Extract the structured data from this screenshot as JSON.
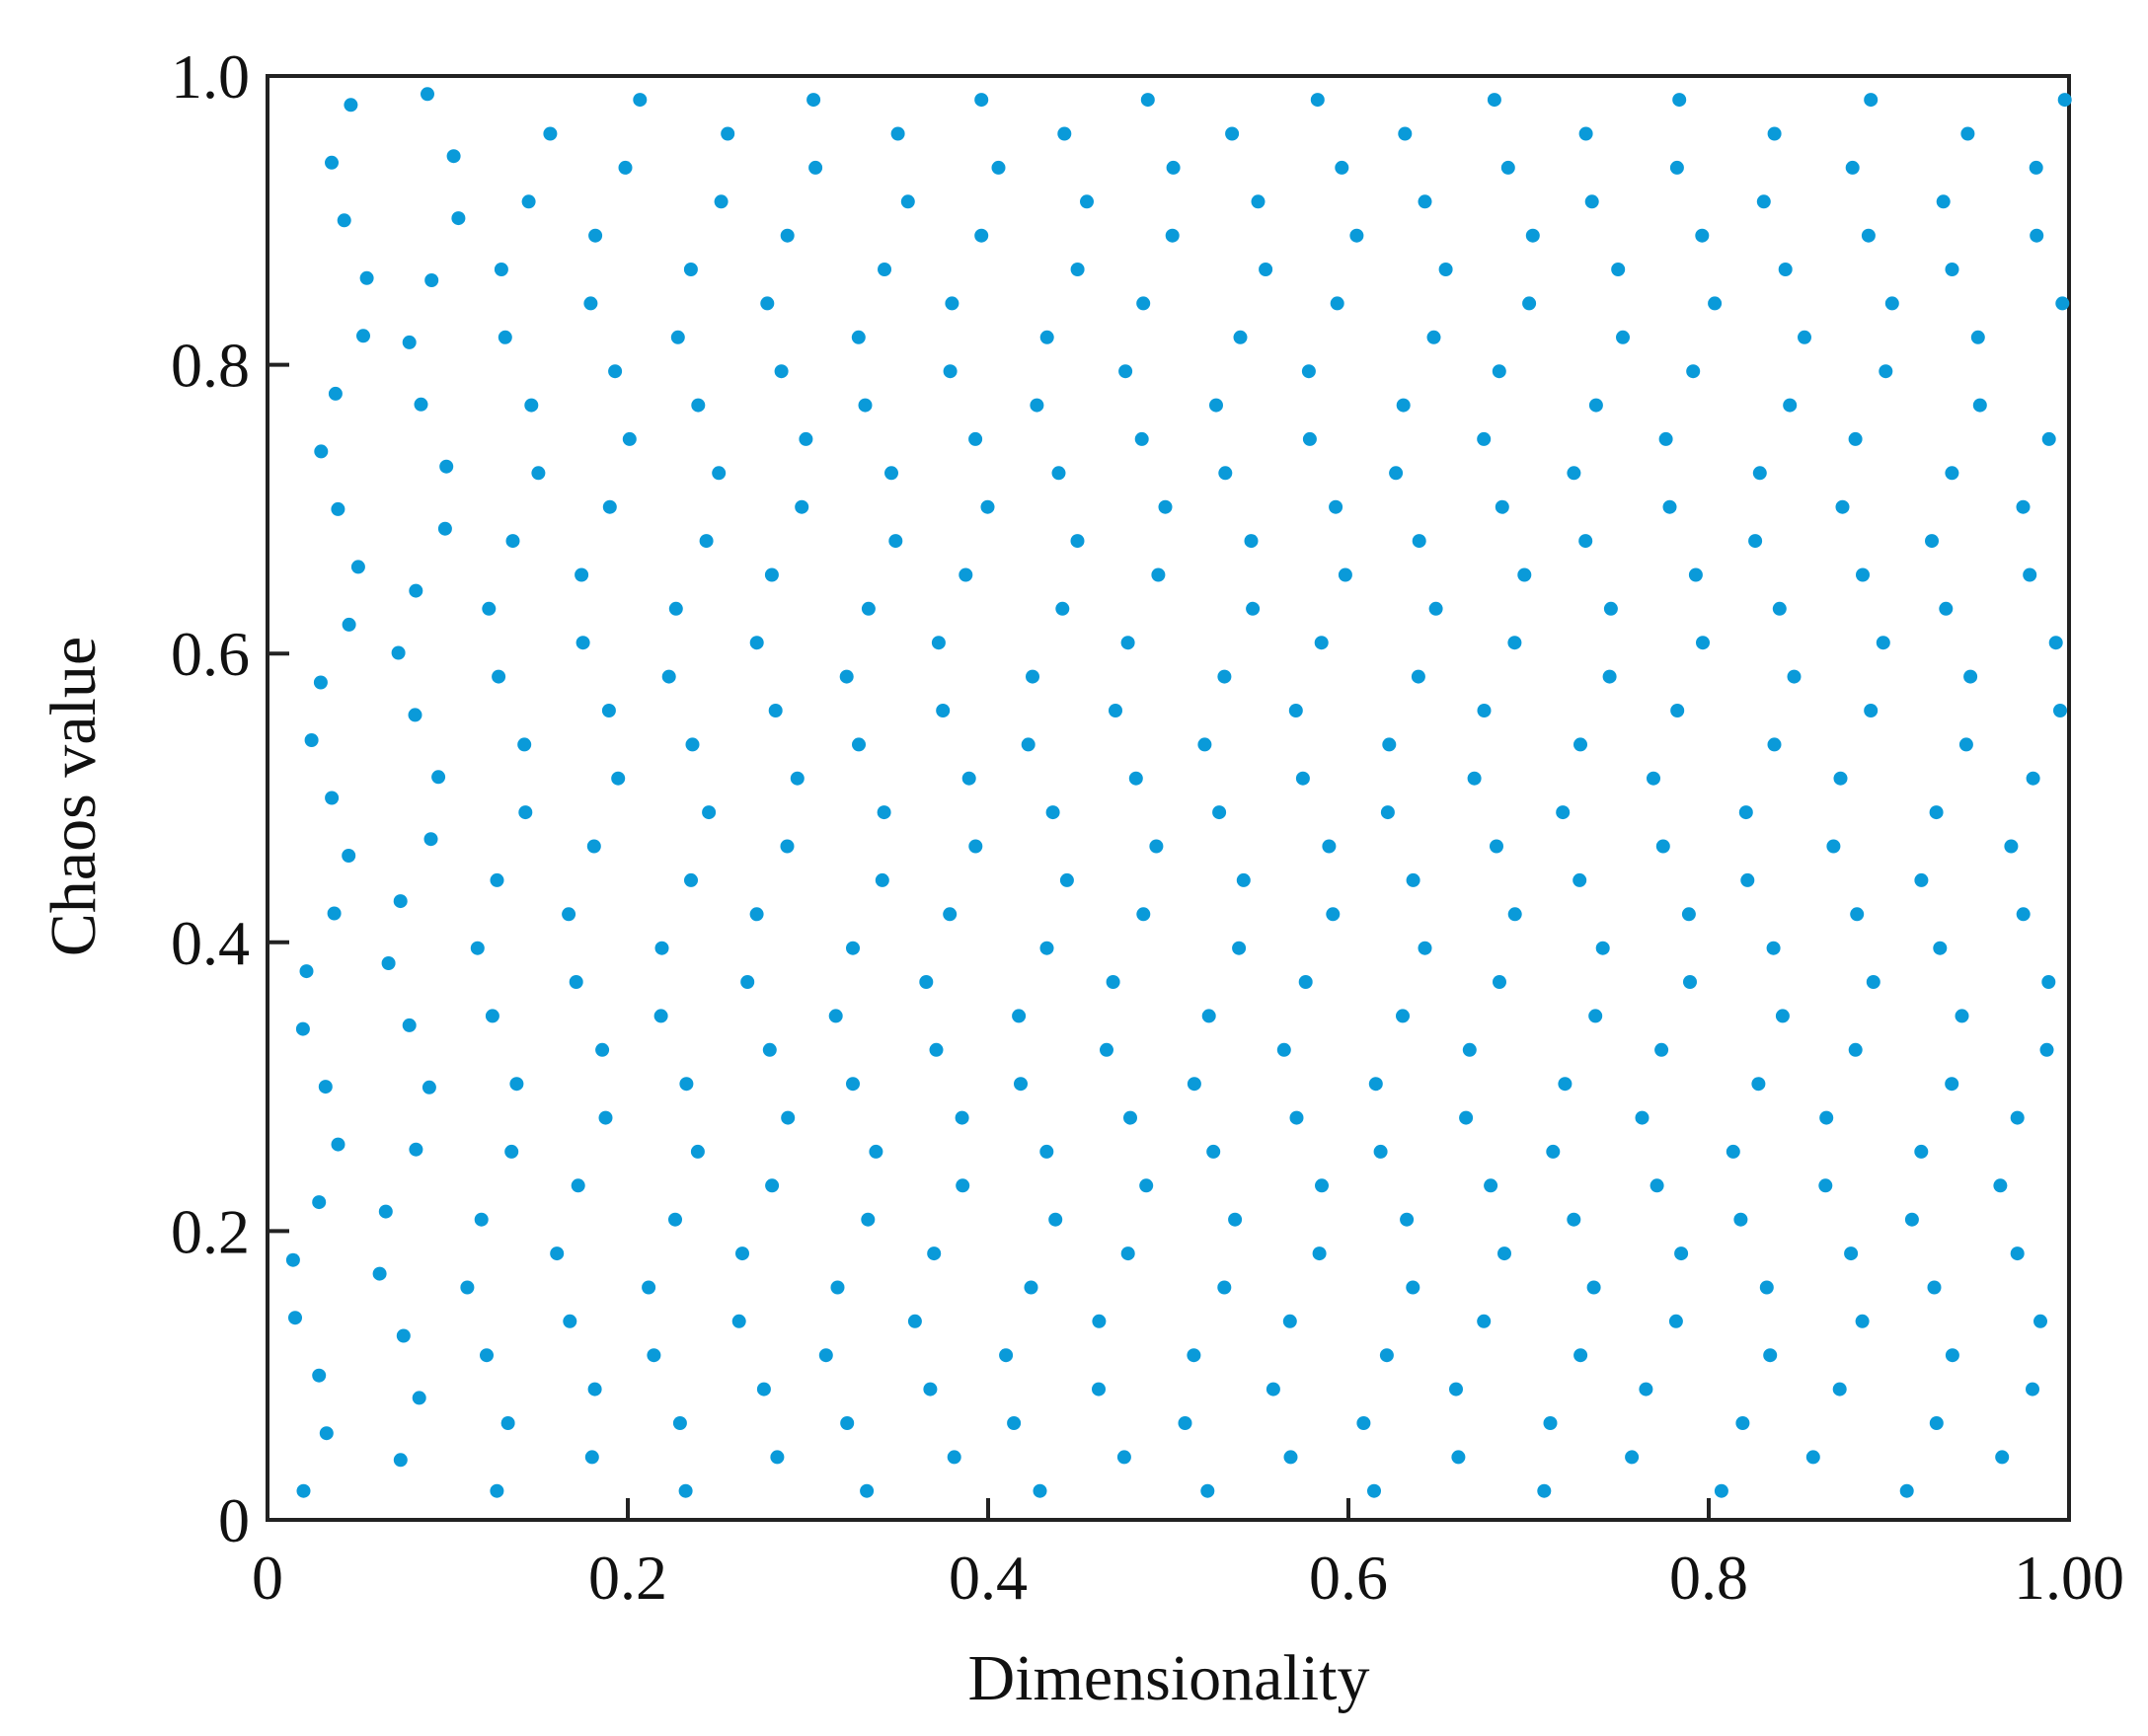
{
  "chart_data": {
    "type": "scatter",
    "title": "",
    "xlabel": "Dimensionality",
    "ylabel": "Chaos value",
    "xlim": [
      0,
      1.0
    ],
    "ylim": [
      0,
      1.0
    ],
    "xticks": [
      "0",
      "0.2",
      "0.4",
      "0.6",
      "0.8",
      "1.00"
    ],
    "yticks": [
      "0",
      "0.2",
      "0.4",
      "0.6",
      "0.8",
      "1.0"
    ],
    "grid": false,
    "marker_color": "#0A9AD9",
    "series": [
      {
        "description_of_pattern": "each column is a zig-zag chain of points",
        "columns": [
          {
            "x": 0.02,
            "step": 0.04,
            "amp": 0.012,
            "phase": 0.0
          },
          {
            "x": 0.07,
            "step": 0.043,
            "amp": 0.013,
            "phase": 0.3
          },
          {
            "x": 0.12,
            "step": 0.047,
            "amp": 0.013,
            "phase": 0.6
          },
          {
            "x": 0.17,
            "step": 0.047,
            "amp": 0.013,
            "phase": 0.9
          },
          {
            "x": 0.22,
            "step": 0.047,
            "amp": 0.013,
            "phase": 1.2
          },
          {
            "x": 0.27,
            "step": 0.047,
            "amp": 0.013,
            "phase": 1.5
          },
          {
            "x": 0.32,
            "step": 0.047,
            "amp": 0.013,
            "phase": 1.8
          },
          {
            "x": 0.37,
            "step": 0.047,
            "amp": 0.013,
            "phase": 2.1
          },
          {
            "x": 0.42,
            "step": 0.047,
            "amp": 0.013,
            "phase": 2.4
          },
          {
            "x": 0.47,
            "step": 0.047,
            "amp": 0.013,
            "phase": 2.7
          },
          {
            "x": 0.52,
            "step": 0.047,
            "amp": 0.013,
            "phase": 3.0
          },
          {
            "x": 0.57,
            "step": 0.047,
            "amp": 0.013,
            "phase": 3.3
          },
          {
            "x": 0.62,
            "step": 0.047,
            "amp": 0.013,
            "phase": 3.6
          },
          {
            "x": 0.67,
            "step": 0.047,
            "amp": 0.013,
            "phase": 3.9
          },
          {
            "x": 0.72,
            "step": 0.047,
            "amp": 0.013,
            "phase": 4.2
          },
          {
            "x": 0.77,
            "step": 0.047,
            "amp": 0.013,
            "phase": 4.5
          },
          {
            "x": 0.82,
            "step": 0.047,
            "amp": 0.013,
            "phase": 4.8
          },
          {
            "x": 0.87,
            "step": 0.047,
            "amp": 0.013,
            "phase": 5.1
          },
          {
            "x": 0.92,
            "step": 0.047,
            "amp": 0.013,
            "phase": 5.4
          },
          {
            "x": 0.97,
            "step": 0.047,
            "amp": 0.013,
            "phase": 5.7
          }
        ]
      }
    ]
  }
}
